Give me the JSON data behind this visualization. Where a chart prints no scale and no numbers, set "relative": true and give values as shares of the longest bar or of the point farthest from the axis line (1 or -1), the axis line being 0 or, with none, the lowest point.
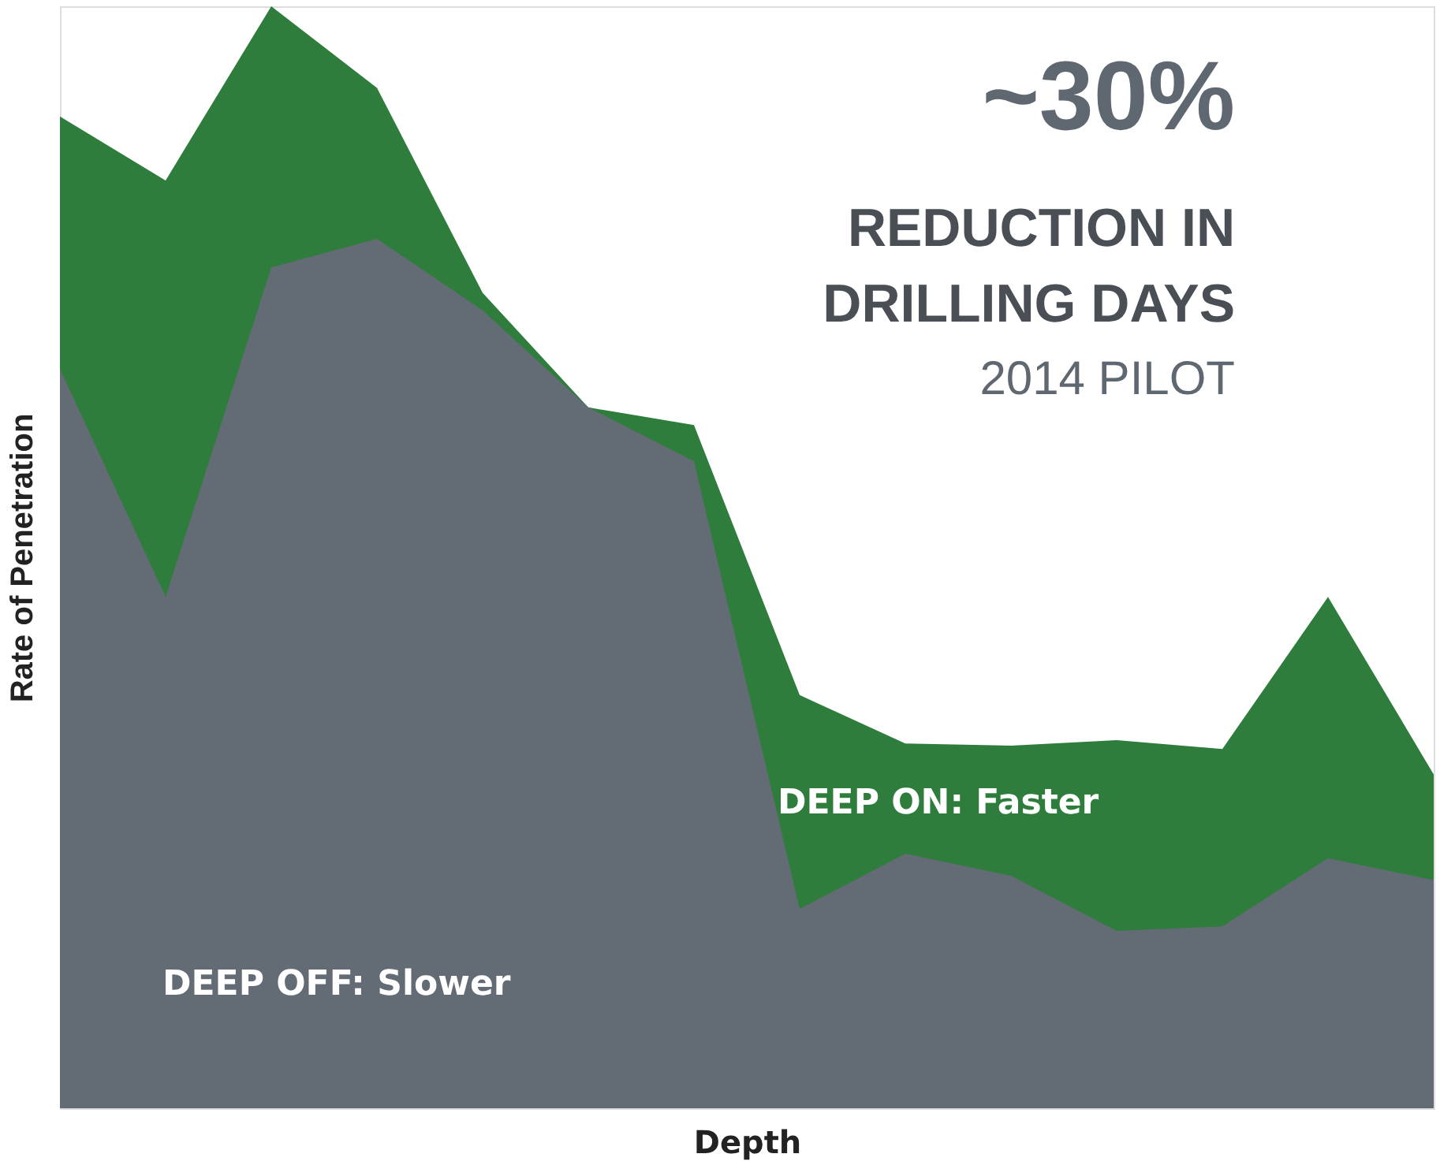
{
  "chart_data": {
    "type": "area",
    "relative": true,
    "xlabel": "Depth",
    "ylabel": "Rate of Penetration",
    "categories": [
      null,
      null,
      null,
      null,
      null,
      null,
      null,
      null,
      null,
      null,
      null,
      null,
      null,
      null
    ],
    "series": [
      {
        "name": "DEEP ON: Faster",
        "color": "#2e7d3c",
        "values": [
          0.9,
          0.842,
          1.0,
          0.926,
          0.74,
          0.636,
          0.62,
          0.375,
          0.331,
          0.329,
          0.334,
          0.326,
          0.464,
          0.303
        ]
      },
      {
        "name": "DEEP OFF: Slower",
        "color": "#636c74",
        "values": [
          0.671,
          0.464,
          0.763,
          0.789,
          0.724,
          0.636,
          0.587,
          0.181,
          0.231,
          0.211,
          0.161,
          0.165,
          0.227,
          0.207
        ]
      }
    ],
    "annotations": [
      "~30%",
      "REDUCTION IN",
      "DRILLING DAYS",
      "2014 PILOT"
    ]
  }
}
